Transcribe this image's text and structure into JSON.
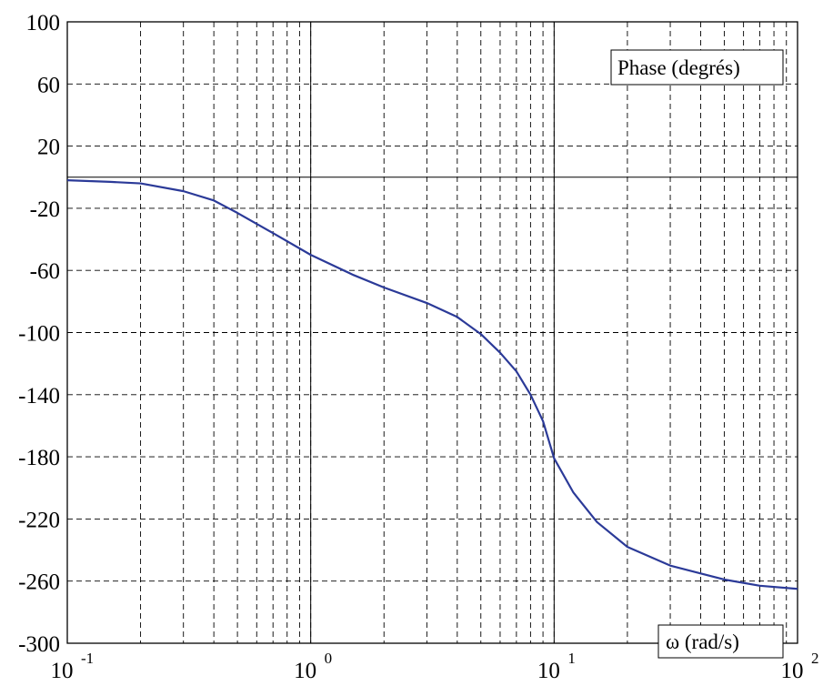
{
  "chart_data": {
    "type": "line",
    "xscale": "log",
    "xlim": [
      0.1,
      100
    ],
    "ylim": [
      -300,
      100
    ],
    "grid": true,
    "annotations": {
      "ylabel_box": "Phase (degrés)",
      "xlabel_box": "ω (rad/s)"
    },
    "yticks": [
      {
        "value": 100,
        "label": "100"
      },
      {
        "value": 60,
        "label": "60"
      },
      {
        "value": 20,
        "label": "20"
      },
      {
        "value": -20,
        "label": "-20"
      },
      {
        "value": -60,
        "label": "-60"
      },
      {
        "value": -100,
        "label": "-100"
      },
      {
        "value": -140,
        "label": "-140"
      },
      {
        "value": -180,
        "label": "-180"
      },
      {
        "value": -220,
        "label": "-220"
      },
      {
        "value": -260,
        "label": "-260"
      },
      {
        "value": -300,
        "label": "-300"
      }
    ],
    "xticks": [
      {
        "value": 0.1,
        "base": "10",
        "exp": "-1"
      },
      {
        "value": 1,
        "base": "10",
        "exp": "0"
      },
      {
        "value": 10,
        "base": "10",
        "exp": "1"
      },
      {
        "value": 100,
        "base": "10",
        "exp": "2"
      }
    ],
    "series": [
      {
        "color": "#2b3a98",
        "x": [
          0.1,
          0.15,
          0.2,
          0.3,
          0.4,
          0.5,
          0.7,
          1,
          1.5,
          2,
          3,
          4,
          5,
          6,
          7,
          8,
          9,
          10,
          12,
          15,
          20,
          30,
          50,
          70,
          100
        ],
        "y": [
          -2,
          -3,
          -4,
          -9,
          -15,
          -23,
          -36,
          -50,
          -63,
          -71,
          -81,
          -90,
          -101,
          -113,
          -125,
          -140,
          -157,
          -181,
          -203,
          -222,
          -238,
          -250,
          -259,
          -263,
          -265
        ]
      }
    ]
  }
}
